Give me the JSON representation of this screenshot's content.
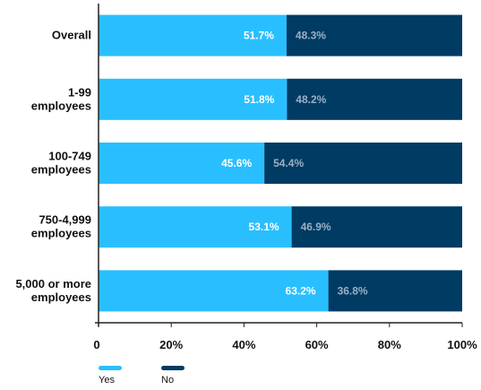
{
  "chart_data": {
    "type": "bar",
    "orientation": "horizontal",
    "stacked": true,
    "categories": [
      "Overall",
      "1-99\nemployees",
      "100-749\nemployees",
      "750-4,999\nemployees",
      "5,000 or more\nemployees"
    ],
    "series": [
      {
        "name": "Yes",
        "values": [
          51.7,
          51.8,
          45.6,
          53.1,
          63.2
        ],
        "labels": [
          "51.7%",
          "51.8%",
          "45.6%",
          "53.1%",
          "63.2%"
        ],
        "color": "#29bfff"
      },
      {
        "name": "No",
        "values": [
          48.3,
          48.2,
          54.4,
          46.9,
          36.8
        ],
        "labels": [
          "48.3%",
          "48.2%",
          "54.4%",
          "46.9%",
          "36.8%"
        ],
        "color": "#003b63"
      }
    ],
    "x_ticks": [
      "0",
      "20%",
      "40%",
      "60%",
      "80%",
      "100%"
    ],
    "xlim": [
      0,
      100
    ],
    "grid": false,
    "legend_position": "bottom-left",
    "title": "",
    "xlabel": "",
    "ylabel": ""
  }
}
